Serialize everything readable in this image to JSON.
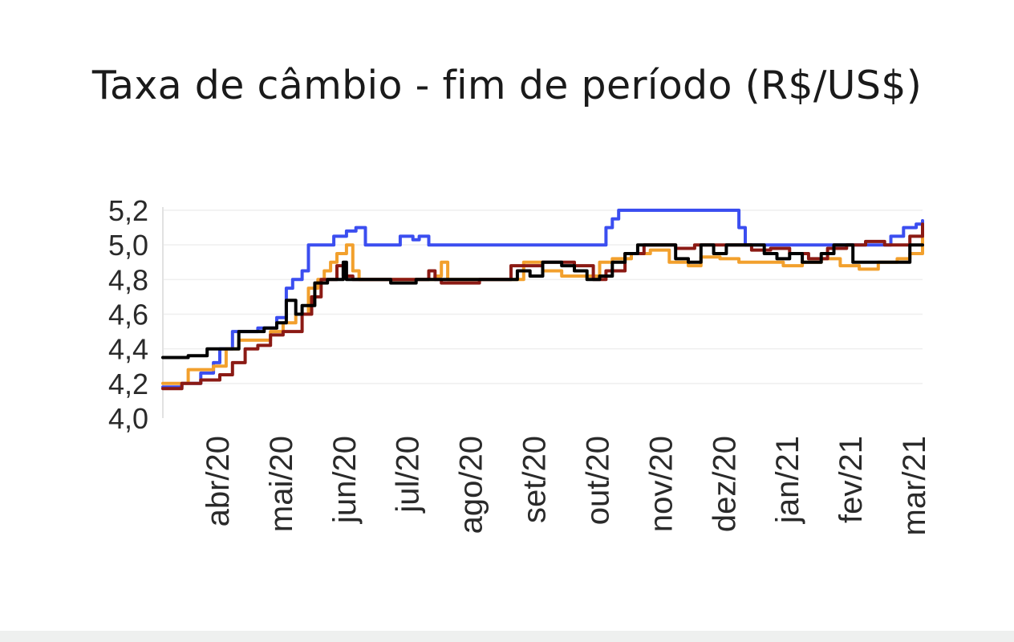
{
  "chart_data": {
    "type": "line",
    "title": "Taxa de câmbio - fim de período (R$/US$)",
    "xlabel": "",
    "ylabel": "",
    "ylim": [
      4.0,
      5.2
    ],
    "yticks": [
      "4,0",
      "4,2",
      "4,4",
      "4,6",
      "4,8",
      "5,0",
      "5,2"
    ],
    "ytick_values": [
      4.0,
      4.2,
      4.4,
      4.6,
      4.8,
      5.0,
      5.2
    ],
    "x_range": [
      0,
      12
    ],
    "categories": [
      "abr/20",
      "mai/20",
      "jun/20",
      "jul/20",
      "ago/20",
      "set/20",
      "out/20",
      "nov/20",
      "dez/20",
      "jan/21",
      "fev/21",
      "mar/21"
    ],
    "category_positions": [
      1,
      2,
      3,
      4,
      5,
      6,
      7,
      8,
      9,
      10,
      11,
      12
    ],
    "grid": true,
    "legend": "none",
    "series": [
      {
        "color": "#3b4ef0",
        "x": [
          0,
          0.3,
          0.6,
          0.8,
          0.9,
          1.1,
          1.3,
          1.5,
          1.8,
          1.95,
          2.05,
          2.2,
          2.3,
          2.5,
          2.7,
          2.9,
          3.05,
          3.2,
          3.4,
          3.6,
          3.75,
          3.85,
          3.95,
          4.05,
          4.2,
          5,
          6,
          6.7,
          7.0,
          7.1,
          7.2,
          7.5,
          8,
          8.7,
          9.0,
          9.1,
          9.2,
          9.5,
          10,
          10.5,
          11,
          11.3,
          11.5,
          11.7,
          11.9,
          12
        ],
        "y": [
          4.18,
          4.2,
          4.26,
          4.32,
          4.4,
          4.5,
          4.5,
          4.52,
          4.58,
          4.75,
          4.8,
          4.85,
          5.0,
          5.0,
          5.05,
          5.08,
          5.1,
          5.0,
          5.0,
          5.0,
          5.05,
          5.05,
          5.03,
          5.05,
          5.0,
          5.0,
          5.0,
          5.0,
          5.1,
          5.15,
          5.2,
          5.2,
          5.2,
          5.2,
          5.2,
          5.1,
          5.0,
          5.0,
          5.0,
          5.0,
          5.0,
          5.0,
          5.05,
          5.1,
          5.12,
          5.14
        ]
      },
      {
        "color": "#f2a02d",
        "x": [
          0,
          0.4,
          0.8,
          1.0,
          1.2,
          1.4,
          1.7,
          1.9,
          2.1,
          2.3,
          2.45,
          2.55,
          2.65,
          2.75,
          2.9,
          3.0,
          3.1,
          3.2,
          3.5,
          4.0,
          4.3,
          4.4,
          4.5,
          5.0,
          5.5,
          5.7,
          6.0,
          6.3,
          6.6,
          6.9,
          7.1,
          7.4,
          7.7,
          8.0,
          8.3,
          8.5,
          8.8,
          9.1,
          9.5,
          9.8,
          10.1,
          10.4,
          10.7,
          11.0,
          11.3,
          11.6,
          11.8,
          12
        ],
        "y": [
          4.2,
          4.28,
          4.3,
          4.4,
          4.45,
          4.45,
          4.5,
          4.55,
          4.6,
          4.75,
          4.8,
          4.85,
          4.9,
          4.95,
          5.0,
          4.85,
          4.8,
          4.8,
          4.8,
          4.8,
          4.82,
          4.9,
          4.8,
          4.8,
          4.8,
          4.9,
          4.85,
          4.82,
          4.82,
          4.9,
          4.92,
          4.95,
          4.97,
          4.9,
          4.88,
          4.93,
          4.92,
          4.9,
          4.9,
          4.88,
          4.9,
          4.92,
          4.88,
          4.86,
          4.9,
          4.92,
          4.95,
          5.05
        ]
      },
      {
        "color": "#8b1a14",
        "x": [
          0,
          0.3,
          0.6,
          0.9,
          1.1,
          1.3,
          1.5,
          1.7,
          1.9,
          2.05,
          2.2,
          2.35,
          2.5,
          2.75,
          2.85,
          3.0,
          3.5,
          4.0,
          4.2,
          4.3,
          4.4,
          5.0,
          5.5,
          6.0,
          6.5,
          6.8,
          7.0,
          7.3,
          7.6,
          7.9,
          8.1,
          8.4,
          8.7,
          9.0,
          9.3,
          9.6,
          9.9,
          10.2,
          10.5,
          10.8,
          11.1,
          11.4,
          11.6,
          11.8,
          12
        ],
        "y": [
          4.17,
          4.2,
          4.22,
          4.25,
          4.32,
          4.4,
          4.42,
          4.48,
          4.5,
          4.5,
          4.6,
          4.7,
          4.8,
          4.88,
          4.82,
          4.8,
          4.8,
          4.8,
          4.85,
          4.8,
          4.78,
          4.8,
          4.88,
          4.9,
          4.88,
          4.8,
          4.85,
          4.95,
          5.0,
          5.0,
          4.98,
          5.0,
          5.0,
          5.0,
          4.97,
          4.98,
          4.95,
          4.92,
          4.98,
          5.0,
          5.02,
          5.0,
          5.0,
          5.05,
          5.12
        ]
      },
      {
        "color": "#000000",
        "x": [
          0,
          0.4,
          0.7,
          0.9,
          1.0,
          1.2,
          1.4,
          1.6,
          1.8,
          1.95,
          2.1,
          2.2,
          2.4,
          2.6,
          2.8,
          2.85,
          2.9,
          3.0,
          3.3,
          3.6,
          4.0,
          4.5,
          5.0,
          5.3,
          5.6,
          5.8,
          6.0,
          6.3,
          6.5,
          6.7,
          6.9,
          7.1,
          7.3,
          7.5,
          7.7,
          7.9,
          8.1,
          8.3,
          8.5,
          8.7,
          8.9,
          9.1,
          9.3,
          9.5,
          9.7,
          9.9,
          10.1,
          10.4,
          10.6,
          10.9,
          11.2,
          11.5,
          11.8,
          12
        ],
        "y": [
          4.35,
          4.36,
          4.4,
          4.4,
          4.4,
          4.5,
          4.5,
          4.52,
          4.55,
          4.68,
          4.6,
          4.65,
          4.78,
          4.8,
          4.8,
          4.9,
          4.8,
          4.8,
          4.8,
          4.78,
          4.8,
          4.8,
          4.8,
          4.8,
          4.85,
          4.82,
          4.9,
          4.88,
          4.85,
          4.8,
          4.82,
          4.9,
          4.95,
          5.0,
          5.0,
          5.0,
          4.92,
          4.9,
          5.0,
          4.95,
          5.0,
          5.0,
          5.0,
          4.95,
          4.92,
          4.95,
          4.9,
          4.95,
          5.0,
          4.9,
          4.9,
          4.9,
          5.0,
          5.0
        ]
      }
    ]
  }
}
